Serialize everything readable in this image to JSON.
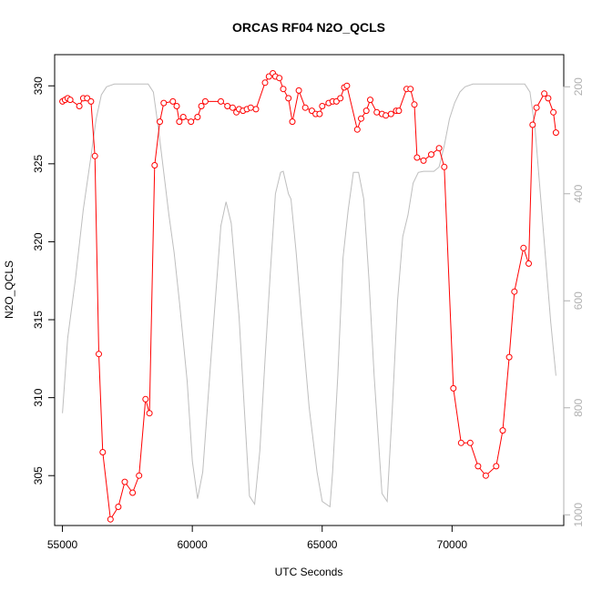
{
  "chart_data": {
    "type": "line",
    "title": "ORCAS RF04 N2O_QCLS",
    "xlabel": "UTC Seconds",
    "ylabel": "N2O_QCLS",
    "xlim": [
      54700,
      74300
    ],
    "ylim": [
      301.8,
      332.0
    ],
    "y2lim": [
      1020,
      140
    ],
    "x_ticks": [
      55000,
      60000,
      65000,
      70000
    ],
    "y_ticks": [
      305,
      310,
      315,
      320,
      325,
      330
    ],
    "y2_ticks": [
      200,
      400,
      600,
      800,
      1000
    ],
    "colors": {
      "n2o": "#ff0000",
      "pressure": "#bebebe"
    },
    "series": [
      {
        "name": "",
        "axis": "left",
        "style": "line+markers",
        "x": [
          55000,
          55100,
          55200,
          55300,
          55650,
          55800,
          55950,
          56100,
          56250,
          56400,
          56550,
          56850,
          57150,
          57400,
          57700,
          57950,
          58200,
          58350,
          58550,
          58750,
          58900,
          59250,
          59400,
          59500,
          59650,
          59950,
          60200,
          60350,
          60500,
          61100,
          61350,
          61550,
          61700,
          61800,
          61950,
          62100,
          62250,
          62450,
          62800,
          62950,
          63100,
          63200,
          63350,
          63500,
          63700,
          63850,
          64100,
          64350,
          64600,
          64750,
          64900,
          65000,
          65250,
          65400,
          65550,
          65700,
          65850,
          65950,
          66350,
          66500,
          66700,
          66850,
          67100,
          67300,
          67450,
          67650,
          67850,
          67950,
          68250,
          68400,
          68550,
          68650,
          68900,
          69200,
          69500,
          69700,
          70050,
          70350,
          70700,
          71000,
          71300,
          71700,
          71950,
          72200,
          72400,
          72750,
          72950,
          73100,
          73250,
          73550,
          73700,
          73900,
          74000
        ],
        "values": [
          329.0,
          329.1,
          329.2,
          329.1,
          328.7,
          329.2,
          329.2,
          329.0,
          325.5,
          312.8,
          306.5,
          302.2,
          303.0,
          304.6,
          303.9,
          305.0,
          309.9,
          309.0,
          324.9,
          327.7,
          328.9,
          329.0,
          328.7,
          327.7,
          328.0,
          327.7,
          328.0,
          328.7,
          329.0,
          329.0,
          328.7,
          328.6,
          328.3,
          328.5,
          328.4,
          328.5,
          328.6,
          328.5,
          330.2,
          330.6,
          330.8,
          330.6,
          330.5,
          329.8,
          329.2,
          327.7,
          329.7,
          328.6,
          328.4,
          328.2,
          328.2,
          328.7,
          328.9,
          329.0,
          329.0,
          329.2,
          329.9,
          330.0,
          327.2,
          327.9,
          328.4,
          329.1,
          328.3,
          328.2,
          328.1,
          328.2,
          328.4,
          328.4,
          329.8,
          329.8,
          328.8,
          325.4,
          325.2,
          325.6,
          326.0,
          324.8,
          310.6,
          307.1,
          307.1,
          305.6,
          305.0,
          305.6,
          307.9,
          312.6,
          316.8,
          319.6,
          318.6,
          327.5,
          328.6,
          329.5,
          329.2,
          328.3,
          327.0
        ]
      },
      {
        "name": "",
        "axis": "right",
        "style": "line",
        "x": [
          55000,
          55200,
          55500,
          55800,
          56100,
          56300,
          56500,
          56700,
          57000,
          57500,
          58000,
          58300,
          58500,
          58700,
          58900,
          59100,
          59300,
          59500,
          59800,
          60000,
          60200,
          60400,
          60700,
          61100,
          61300,
          61500,
          61800,
          62000,
          62200,
          62400,
          62600,
          62800,
          63000,
          63200,
          63400,
          63500,
          63700,
          63800,
          64000,
          64200,
          64500,
          64800,
          65000,
          65300,
          65400,
          65600,
          65800,
          66000,
          66200,
          66400,
          66600,
          66800,
          67000,
          67300,
          67500,
          67700,
          67900,
          68100,
          68300,
          68500,
          68700,
          68900,
          69100,
          69300,
          69500,
          69700,
          69900,
          70100,
          70300,
          70500,
          70800,
          71000,
          71500,
          72000,
          72500,
          72800,
          73000,
          73200,
          73400,
          73600,
          73800,
          74000
        ],
        "values": [
          810,
          670,
          560,
          430,
          330,
          260,
          215,
          200,
          195,
          195,
          195,
          195,
          210,
          280,
          360,
          440,
          510,
          600,
          750,
          900,
          970,
          920,
          720,
          460,
          415,
          455,
          630,
          800,
          965,
          980,
          880,
          710,
          550,
          400,
          360,
          358,
          400,
          410,
          510,
          630,
          800,
          920,
          975,
          985,
          920,
          740,
          520,
          430,
          360,
          360,
          410,
          560,
          740,
          960,
          975,
          800,
          600,
          480,
          440,
          380,
          360,
          358,
          358,
          358,
          350,
          310,
          260,
          230,
          210,
          200,
          195,
          195,
          195,
          195,
          195,
          195,
          210,
          280,
          400,
          520,
          640,
          740
        ]
      }
    ]
  }
}
